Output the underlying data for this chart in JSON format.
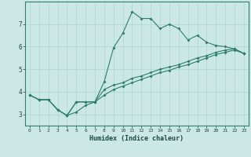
{
  "xlabel": "Humidex (Indice chaleur)",
  "ylabel": "",
  "bg_color": "#cce8e4",
  "line_color": "#2e7d6e",
  "grid_color": "#aad8d0",
  "xlim": [
    -0.5,
    23.5
  ],
  "ylim": [
    2.5,
    8.0
  ],
  "yticks": [
    3,
    4,
    5,
    6,
    7
  ],
  "xticks": [
    0,
    1,
    2,
    3,
    4,
    5,
    6,
    7,
    8,
    9,
    10,
    11,
    12,
    13,
    14,
    15,
    16,
    17,
    18,
    19,
    20,
    21,
    22,
    23
  ],
  "series1_x": [
    0,
    1,
    2,
    3,
    4,
    5,
    6,
    7,
    8,
    9,
    10,
    11,
    12,
    13,
    14,
    15,
    16,
    17,
    18,
    19,
    20,
    21,
    22,
    23
  ],
  "series1_y": [
    3.85,
    3.65,
    3.65,
    3.2,
    2.95,
    3.55,
    3.55,
    3.55,
    4.45,
    5.95,
    6.6,
    7.55,
    7.25,
    7.25,
    6.8,
    7.0,
    6.8,
    6.3,
    6.5,
    6.2,
    6.05,
    6.0,
    5.9,
    5.7
  ],
  "series2_x": [
    0,
    1,
    2,
    3,
    4,
    5,
    6,
    7,
    8,
    9,
    10,
    11,
    12,
    13,
    14,
    15,
    16,
    17,
    18,
    19,
    20,
    21,
    22,
    23
  ],
  "series2_y": [
    3.85,
    3.65,
    3.65,
    3.2,
    2.95,
    3.55,
    3.55,
    3.55,
    4.1,
    4.3,
    4.4,
    4.6,
    4.7,
    4.85,
    5.0,
    5.1,
    5.2,
    5.35,
    5.5,
    5.6,
    5.75,
    5.85,
    5.9,
    5.7
  ],
  "series3_x": [
    0,
    1,
    2,
    3,
    4,
    5,
    6,
    7,
    8,
    9,
    10,
    11,
    12,
    13,
    14,
    15,
    16,
    17,
    18,
    19,
    20,
    21,
    22,
    23
  ],
  "series3_y": [
    3.85,
    3.65,
    3.65,
    3.2,
    2.95,
    3.1,
    3.4,
    3.55,
    3.85,
    4.1,
    4.25,
    4.4,
    4.55,
    4.7,
    4.85,
    4.95,
    5.1,
    5.2,
    5.35,
    5.5,
    5.65,
    5.75,
    5.85,
    5.7
  ]
}
